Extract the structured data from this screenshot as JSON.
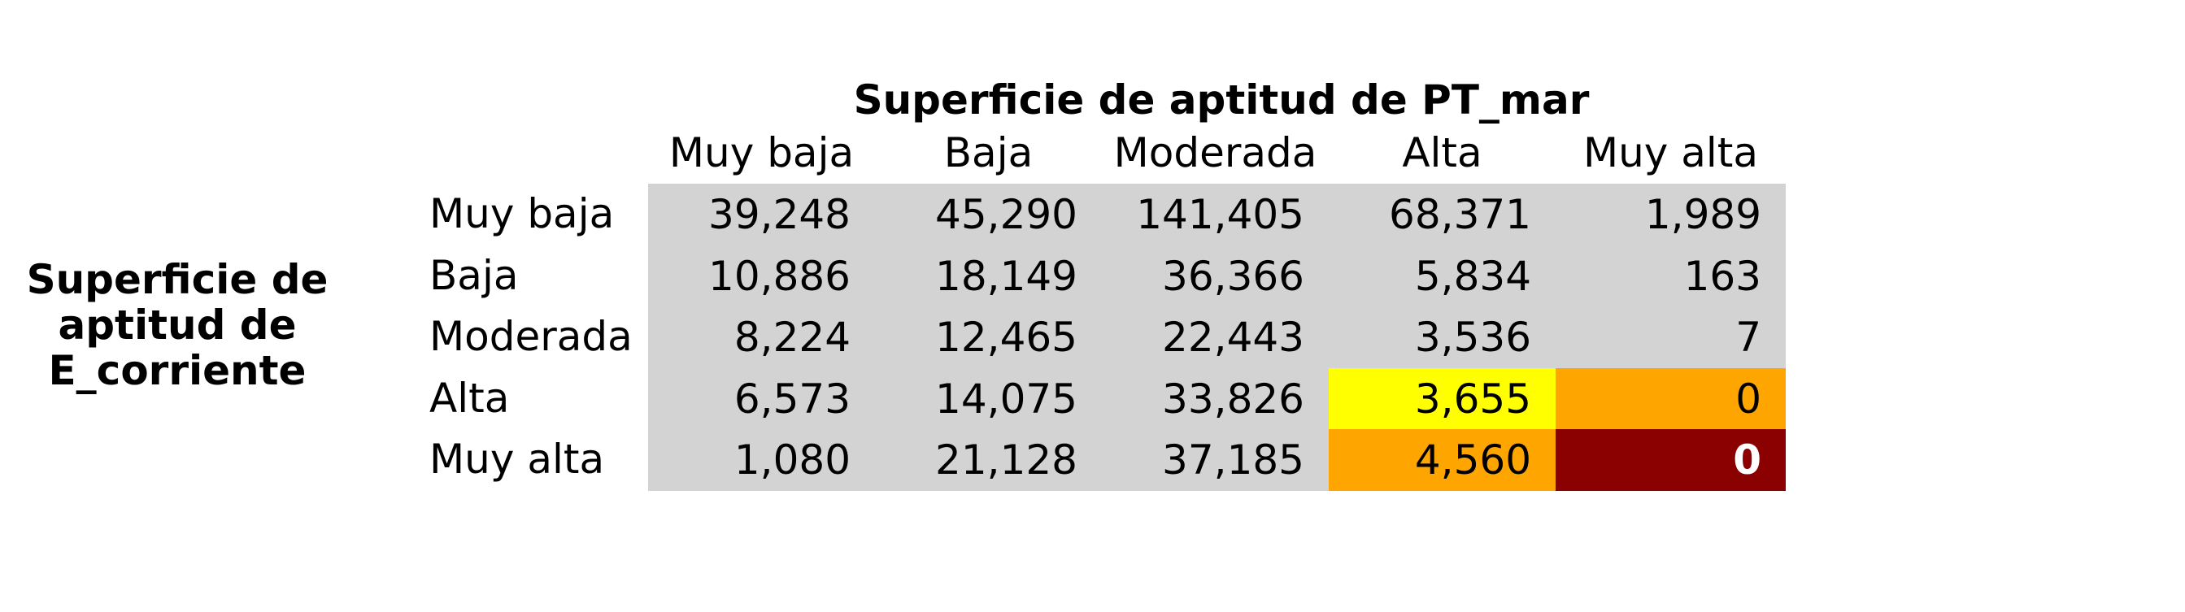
{
  "chart_data": {
    "type": "table",
    "title": "Superficie de aptitud de PT_mar",
    "row_title": "Superficie de aptitud de E_corriente",
    "columns": [
      "Muy baja",
      "Baja",
      "Moderada",
      "Alta",
      "Muy alta"
    ],
    "rows": [
      "Muy baja",
      "Baja",
      "Moderada",
      "Alta",
      "Muy alta"
    ],
    "values": [
      [
        "39,248",
        "45,290",
        "141,405",
        "68,371",
        "1,989"
      ],
      [
        "10,886",
        "18,149",
        "36,366",
        "5,834",
        "163"
      ],
      [
        "8,224",
        "12,465",
        "22,443",
        "3,536",
        "7"
      ],
      [
        "6,573",
        "14,075",
        "33,826",
        "3,655",
        "0"
      ],
      [
        "1,080",
        "21,128",
        "37,185",
        "4,560",
        "0"
      ]
    ],
    "cell_colors": [
      [
        "#d3d3d3",
        "#d3d3d3",
        "#d3d3d3",
        "#d3d3d3",
        "#d3d3d3"
      ],
      [
        "#d3d3d3",
        "#d3d3d3",
        "#d3d3d3",
        "#d3d3d3",
        "#d3d3d3"
      ],
      [
        "#d3d3d3",
        "#d3d3d3",
        "#d3d3d3",
        "#d3d3d3",
        "#d3d3d3"
      ],
      [
        "#d3d3d3",
        "#d3d3d3",
        "#d3d3d3",
        "#ffff00",
        "#ffa500"
      ],
      [
        "#d3d3d3",
        "#d3d3d3",
        "#d3d3d3",
        "#ffa500",
        "#8b0000"
      ]
    ],
    "text_colors": [
      [
        "#000000",
        "#000000",
        "#000000",
        "#000000",
        "#000000"
      ],
      [
        "#000000",
        "#000000",
        "#000000",
        "#000000",
        "#000000"
      ],
      [
        "#000000",
        "#000000",
        "#000000",
        "#000000",
        "#000000"
      ],
      [
        "#000000",
        "#000000",
        "#000000",
        "#000000",
        "#000000"
      ],
      [
        "#000000",
        "#000000",
        "#000000",
        "#000000",
        "#ffffff"
      ]
    ],
    "bold_cells": [
      [
        4,
        4
      ]
    ]
  }
}
